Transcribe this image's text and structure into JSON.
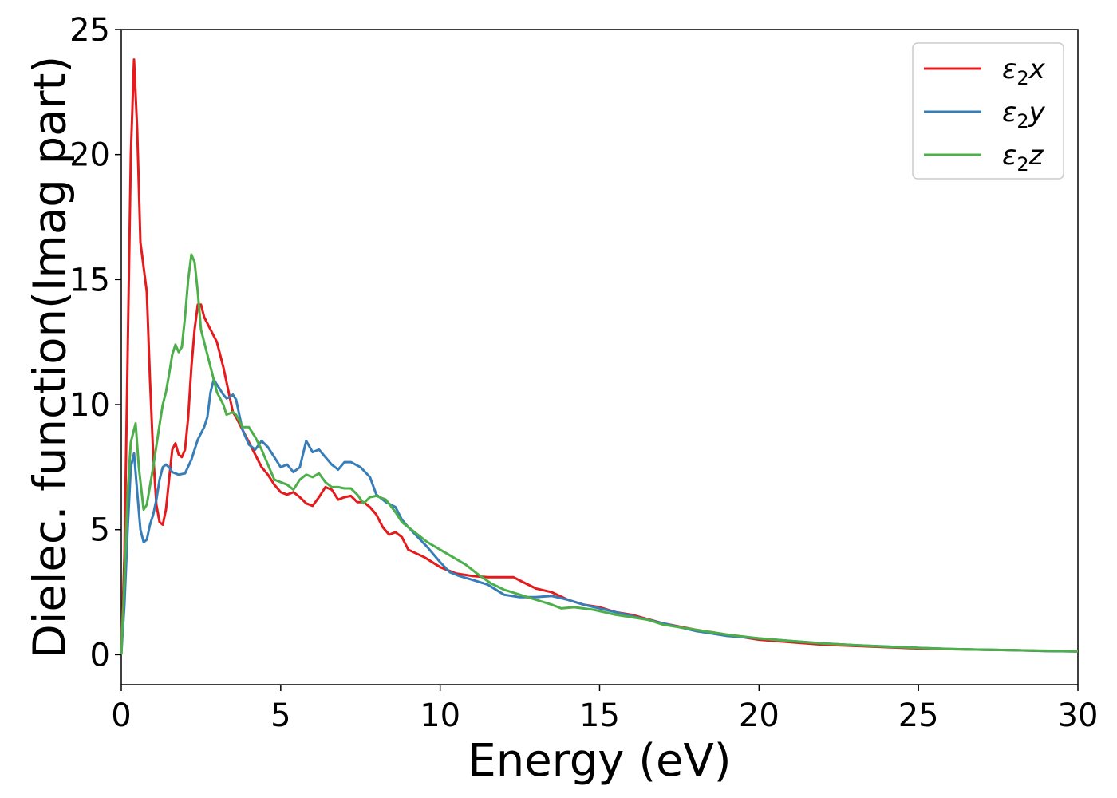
{
  "chart_data": {
    "type": "line",
    "xlabel": "Energy (eV)",
    "ylabel": "Dielec. function(Imag part)",
    "xlim": [
      0,
      30
    ],
    "ylim": [
      -1.2,
      25
    ],
    "xticks": [
      0,
      5,
      10,
      15,
      20,
      25,
      30
    ],
    "yticks": [
      0,
      5,
      10,
      15,
      20,
      25
    ],
    "grid": false,
    "legend_position": "top-right",
    "series": [
      {
        "name": "ε2x",
        "legend": {
          "base": "ε",
          "sub": "2",
          "tail": "x"
        },
        "color": "#e41a1c",
        "points": [
          [
            0,
            0
          ],
          [
            0.1,
            4
          ],
          [
            0.2,
            12
          ],
          [
            0.3,
            20
          ],
          [
            0.4,
            23.8
          ],
          [
            0.5,
            21
          ],
          [
            0.6,
            16.5
          ],
          [
            0.7,
            15.5
          ],
          [
            0.8,
            14.5
          ],
          [
            0.9,
            11
          ],
          [
            1.0,
            8
          ],
          [
            1.1,
            6
          ],
          [
            1.2,
            5.3
          ],
          [
            1.3,
            5.2
          ],
          [
            1.4,
            5.8
          ],
          [
            1.5,
            7
          ],
          [
            1.6,
            8.2
          ],
          [
            1.7,
            8.45
          ],
          [
            1.8,
            8
          ],
          [
            1.9,
            7.9
          ],
          [
            2.0,
            8.2
          ],
          [
            2.1,
            9.5
          ],
          [
            2.2,
            11.5
          ],
          [
            2.3,
            13
          ],
          [
            2.4,
            14
          ],
          [
            2.5,
            14
          ],
          [
            2.6,
            13.5
          ],
          [
            2.8,
            13
          ],
          [
            3.0,
            12.5
          ],
          [
            3.2,
            11.5
          ],
          [
            3.4,
            10.3
          ],
          [
            3.5,
            9.7
          ],
          [
            3.6,
            9.5
          ],
          [
            3.8,
            9
          ],
          [
            4.0,
            8.5
          ],
          [
            4.2,
            8
          ],
          [
            4.4,
            7.5
          ],
          [
            4.6,
            7.2
          ],
          [
            4.8,
            6.8
          ],
          [
            5.0,
            6.5
          ],
          [
            5.2,
            6.4
          ],
          [
            5.4,
            6.5
          ],
          [
            5.6,
            6.3
          ],
          [
            5.8,
            6.05
          ],
          [
            6.0,
            5.95
          ],
          [
            6.2,
            6.3
          ],
          [
            6.4,
            6.7
          ],
          [
            6.6,
            6.6
          ],
          [
            6.8,
            6.2
          ],
          [
            7.0,
            6.3
          ],
          [
            7.2,
            6.35
          ],
          [
            7.4,
            6.1
          ],
          [
            7.6,
            6.1
          ],
          [
            7.8,
            5.9
          ],
          [
            8.0,
            5.6
          ],
          [
            8.2,
            5.1
          ],
          [
            8.4,
            4.8
          ],
          [
            8.6,
            4.9
          ],
          [
            8.8,
            4.7
          ],
          [
            9.0,
            4.2
          ],
          [
            9.5,
            3.9
          ],
          [
            10.0,
            3.5
          ],
          [
            10.5,
            3.25
          ],
          [
            11.0,
            3.15
          ],
          [
            11.5,
            3.1
          ],
          [
            12.0,
            3.1
          ],
          [
            12.3,
            3.1
          ],
          [
            12.6,
            2.9
          ],
          [
            13.0,
            2.65
          ],
          [
            13.5,
            2.5
          ],
          [
            14.0,
            2.2
          ],
          [
            14.5,
            2.0
          ],
          [
            15.0,
            1.9
          ],
          [
            15.5,
            1.7
          ],
          [
            16.0,
            1.6
          ],
          [
            17.0,
            1.25
          ],
          [
            18.0,
            1.0
          ],
          [
            19.0,
            0.8
          ],
          [
            20.0,
            0.6
          ],
          [
            21.0,
            0.5
          ],
          [
            22.0,
            0.4
          ],
          [
            23.0,
            0.35
          ],
          [
            24.0,
            0.3
          ],
          [
            25.0,
            0.25
          ],
          [
            26.0,
            0.22
          ],
          [
            27.0,
            0.2
          ],
          [
            28.0,
            0.18
          ],
          [
            29.0,
            0.15
          ],
          [
            30.0,
            0.13
          ]
        ]
      },
      {
        "name": "ε2y",
        "legend": {
          "base": "ε",
          "sub": "2",
          "tail": "y"
        },
        "color": "#377eb8",
        "points": [
          [
            0,
            0
          ],
          [
            0.1,
            2
          ],
          [
            0.2,
            5
          ],
          [
            0.3,
            7.5
          ],
          [
            0.4,
            8.05
          ],
          [
            0.5,
            6.5
          ],
          [
            0.6,
            5
          ],
          [
            0.7,
            4.5
          ],
          [
            0.8,
            4.6
          ],
          [
            0.9,
            5.2
          ],
          [
            1.0,
            5.6
          ],
          [
            1.1,
            6.2
          ],
          [
            1.2,
            7
          ],
          [
            1.3,
            7.5
          ],
          [
            1.4,
            7.6
          ],
          [
            1.5,
            7.5
          ],
          [
            1.6,
            7.3
          ],
          [
            1.8,
            7.2
          ],
          [
            2.0,
            7.25
          ],
          [
            2.2,
            7.8
          ],
          [
            2.4,
            8.6
          ],
          [
            2.6,
            9.1
          ],
          [
            2.7,
            9.5
          ],
          [
            2.8,
            10.5
          ],
          [
            2.9,
            11
          ],
          [
            3.0,
            10.8
          ],
          [
            3.1,
            10.6
          ],
          [
            3.2,
            10.4
          ],
          [
            3.3,
            10.25
          ],
          [
            3.4,
            10.3
          ],
          [
            3.5,
            10.4
          ],
          [
            3.6,
            10.2
          ],
          [
            3.7,
            9.6
          ],
          [
            3.8,
            9
          ],
          [
            4.0,
            8.4
          ],
          [
            4.2,
            8.2
          ],
          [
            4.4,
            8.55
          ],
          [
            4.6,
            8.3
          ],
          [
            4.8,
            7.9
          ],
          [
            5.0,
            7.5
          ],
          [
            5.2,
            7.6
          ],
          [
            5.4,
            7.3
          ],
          [
            5.6,
            7.5
          ],
          [
            5.8,
            8.55
          ],
          [
            6.0,
            8.1
          ],
          [
            6.2,
            8.2
          ],
          [
            6.4,
            7.9
          ],
          [
            6.6,
            7.6
          ],
          [
            6.8,
            7.4
          ],
          [
            7.0,
            7.7
          ],
          [
            7.2,
            7.7
          ],
          [
            7.5,
            7.5
          ],
          [
            7.8,
            7.1
          ],
          [
            8.0,
            6.4
          ],
          [
            8.3,
            6.1
          ],
          [
            8.6,
            5.9
          ],
          [
            8.8,
            5.4
          ],
          [
            9.0,
            5.1
          ],
          [
            9.3,
            4.7
          ],
          [
            9.6,
            4.3
          ],
          [
            10.0,
            3.7
          ],
          [
            10.3,
            3.3
          ],
          [
            10.6,
            3.15
          ],
          [
            11.0,
            3.0
          ],
          [
            11.5,
            2.8
          ],
          [
            12.0,
            2.4
          ],
          [
            12.5,
            2.3
          ],
          [
            13.0,
            2.3
          ],
          [
            13.5,
            2.35
          ],
          [
            14.0,
            2.2
          ],
          [
            14.5,
            2.0
          ],
          [
            15.0,
            1.85
          ],
          [
            15.5,
            1.7
          ],
          [
            16.0,
            1.55
          ],
          [
            17.0,
            1.25
          ],
          [
            18.0,
            0.95
          ],
          [
            19.0,
            0.75
          ],
          [
            20.0,
            0.65
          ],
          [
            21.0,
            0.55
          ],
          [
            22.0,
            0.45
          ],
          [
            23.0,
            0.38
          ],
          [
            24.0,
            0.33
          ],
          [
            25.0,
            0.27
          ],
          [
            26.0,
            0.23
          ],
          [
            27.0,
            0.2
          ],
          [
            28.0,
            0.18
          ],
          [
            29.0,
            0.15
          ],
          [
            30.0,
            0.13
          ]
        ]
      },
      {
        "name": "ε2z",
        "legend": {
          "base": "ε",
          "sub": "2",
          "tail": "z"
        },
        "color": "#4daf4a",
        "points": [
          [
            0,
            0
          ],
          [
            0.1,
            3
          ],
          [
            0.2,
            6.5
          ],
          [
            0.3,
            8.5
          ],
          [
            0.45,
            9.25
          ],
          [
            0.55,
            7.5
          ],
          [
            0.7,
            5.8
          ],
          [
            0.8,
            6
          ],
          [
            1.0,
            7.5
          ],
          [
            1.2,
            9.2
          ],
          [
            1.3,
            10
          ],
          [
            1.4,
            10.5
          ],
          [
            1.5,
            11.2
          ],
          [
            1.6,
            12
          ],
          [
            1.7,
            12.4
          ],
          [
            1.8,
            12.1
          ],
          [
            1.9,
            12.3
          ],
          [
            2.0,
            13.5
          ],
          [
            2.1,
            15
          ],
          [
            2.2,
            16
          ],
          [
            2.3,
            15.7
          ],
          [
            2.4,
            14.5
          ],
          [
            2.5,
            13
          ],
          [
            2.7,
            12
          ],
          [
            2.8,
            11.5
          ],
          [
            3.0,
            10.5
          ],
          [
            3.2,
            10
          ],
          [
            3.3,
            9.6
          ],
          [
            3.5,
            9.7
          ],
          [
            3.6,
            9.6
          ],
          [
            3.8,
            9.1
          ],
          [
            4.0,
            9.1
          ],
          [
            4.2,
            8.7
          ],
          [
            4.4,
            8.2
          ],
          [
            4.6,
            7.6
          ],
          [
            4.8,
            7.0
          ],
          [
            5.0,
            6.9
          ],
          [
            5.2,
            6.8
          ],
          [
            5.4,
            6.6
          ],
          [
            5.6,
            7.0
          ],
          [
            5.8,
            7.2
          ],
          [
            6.0,
            7.1
          ],
          [
            6.2,
            7.25
          ],
          [
            6.4,
            6.9
          ],
          [
            6.6,
            6.7
          ],
          [
            6.8,
            6.7
          ],
          [
            7.0,
            6.65
          ],
          [
            7.2,
            6.65
          ],
          [
            7.4,
            6.4
          ],
          [
            7.6,
            6.05
          ],
          [
            7.8,
            6.3
          ],
          [
            8.0,
            6.35
          ],
          [
            8.3,
            6.2
          ],
          [
            8.6,
            5.7
          ],
          [
            8.8,
            5.3
          ],
          [
            9.0,
            5.1
          ],
          [
            9.3,
            4.8
          ],
          [
            9.6,
            4.5
          ],
          [
            10.0,
            4.2
          ],
          [
            10.4,
            3.9
          ],
          [
            10.8,
            3.6
          ],
          [
            11.2,
            3.2
          ],
          [
            11.6,
            2.85
          ],
          [
            12.0,
            2.6
          ],
          [
            12.5,
            2.4
          ],
          [
            13.0,
            2.2
          ],
          [
            13.5,
            2.0
          ],
          [
            13.8,
            1.85
          ],
          [
            14.2,
            1.9
          ],
          [
            14.8,
            1.8
          ],
          [
            15.5,
            1.6
          ],
          [
            16.0,
            1.5
          ],
          [
            16.5,
            1.4
          ],
          [
            17.0,
            1.2
          ],
          [
            18.0,
            1.0
          ],
          [
            19.0,
            0.8
          ],
          [
            20.0,
            0.65
          ],
          [
            21.0,
            0.55
          ],
          [
            22.0,
            0.45
          ],
          [
            23.0,
            0.38
          ],
          [
            24.0,
            0.32
          ],
          [
            25.0,
            0.27
          ],
          [
            26.0,
            0.23
          ],
          [
            27.0,
            0.2
          ],
          [
            28.0,
            0.18
          ],
          [
            29.0,
            0.16
          ],
          [
            30.0,
            0.14
          ]
        ]
      }
    ]
  }
}
